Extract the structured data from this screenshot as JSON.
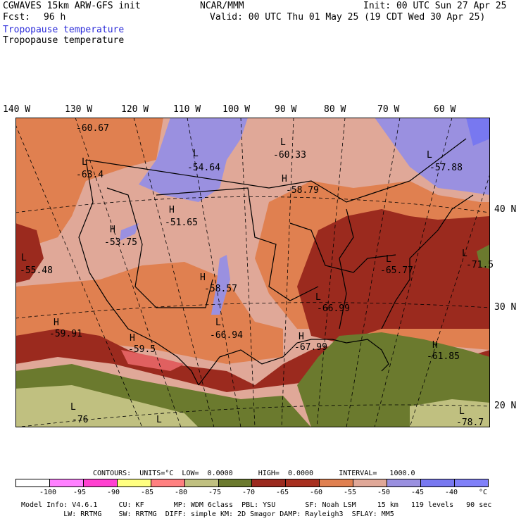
{
  "header": {
    "model": "CGWAVES 15km ARW-GFS init",
    "org": "NCAR/MMM",
    "init": "Init: 00 UTC Sun 27 Apr 25",
    "fcst_label": "Fcst:",
    "fcst_value": "96 h",
    "valid": "Valid: 00 UTC Thu 01 May 25 (19 CDT Wed 30 Apr 25)",
    "field1": "Tropopause temperature",
    "field2": "Tropopause temperature"
  },
  "longitudes": [
    "140 W",
    "130 W",
    "120 W",
    "110 W",
    "100 W",
    "90 W",
    "80 W",
    "70 W",
    "60 W"
  ],
  "latitudes": [
    "40 N",
    "30 N",
    "20 N"
  ],
  "map_labels": [
    {
      "t": "-60.67"
    },
    {
      "t": "L"
    },
    {
      "t": "-63.4"
    },
    {
      "t": "L"
    },
    {
      "t": "-54.64"
    },
    {
      "t": "L"
    },
    {
      "t": "-60.33"
    },
    {
      "t": "H"
    },
    {
      "t": "-58.79"
    },
    {
      "t": "L"
    },
    {
      "t": "-57.88"
    },
    {
      "t": "H"
    },
    {
      "t": "-51.65"
    },
    {
      "t": "H"
    },
    {
      "t": "-53.75"
    },
    {
      "t": "L"
    },
    {
      "t": "-55.48"
    },
    {
      "t": "H"
    },
    {
      "t": "-58.57"
    },
    {
      "t": "L"
    },
    {
      "t": "-65.77"
    },
    {
      "t": "L"
    },
    {
      "t": "-71.5"
    },
    {
      "t": "L"
    },
    {
      "t": "-66.99"
    },
    {
      "t": "H"
    },
    {
      "t": "-59.91"
    },
    {
      "t": "H"
    },
    {
      "t": "-59.5"
    },
    {
      "t": "L"
    },
    {
      "t": "-66.94"
    },
    {
      "t": "H"
    },
    {
      "t": "-67.99"
    },
    {
      "t": "H"
    },
    {
      "t": "-61.85"
    },
    {
      "t": "L"
    },
    {
      "t": "-76"
    },
    {
      "t": "L"
    },
    {
      "t": "L"
    },
    {
      "t": "-78.7"
    }
  ],
  "legend": {
    "contours_line": "CONTOURS:  UNITS=°C  LOW=  0.0000      HIGH=  0.0000      INTERVAL=   1000.0",
    "colors": [
      "#ffffff",
      "#ff80ff",
      "#ff40d0",
      "#ffff80",
      "#ff8080",
      "#c0c080",
      "#6b7a2e",
      "#9b2a1e",
      "#a83020",
      "#e08050",
      "#e0a898",
      "#9a90e0",
      "#7878f0",
      "#8080f8"
    ],
    "ticks": [
      "-100",
      "-95",
      "-90",
      "-85",
      "-80",
      "-75",
      "-70",
      "-65",
      "-60",
      "-55",
      "-50",
      "-45",
      "-40",
      "°C"
    ]
  },
  "footer": {
    "line1": "Model Info: V4.6.1     CU: KF       MP: WDM 6class  PBL: YSU       SF: Noah LSM     15 km   119 levels   90 sec",
    "line2": "          LW: RRTMG    SW: RRTMG  DIFF: simple KM: 2D Smagor DAMP: Rayleigh3  SFLAY: MM5"
  }
}
